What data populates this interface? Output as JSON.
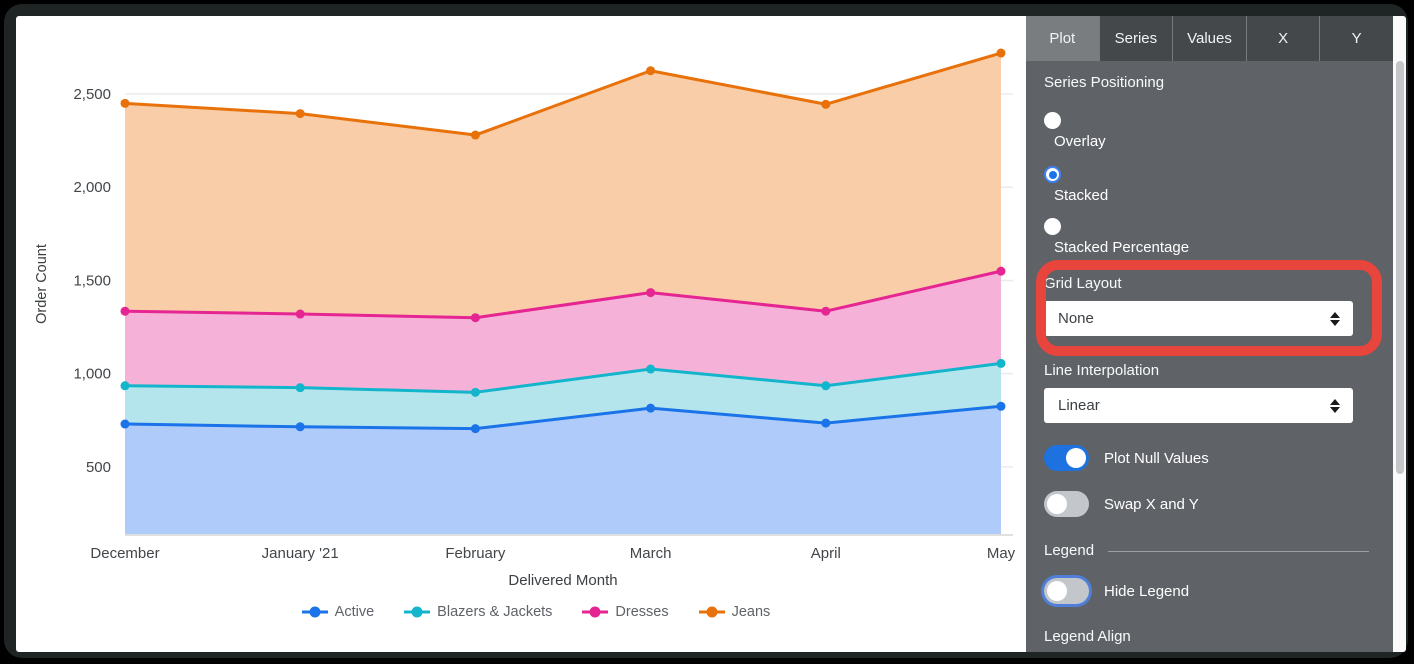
{
  "panel": {
    "tabs": [
      {
        "label": "Plot",
        "active": true
      },
      {
        "label": "Series",
        "active": false
      },
      {
        "label": "Values",
        "active": false
      },
      {
        "label": "X",
        "active": false
      },
      {
        "label": "Y",
        "active": false
      }
    ],
    "series_positioning": {
      "label": "Series Positioning",
      "options": [
        "Overlay",
        "Stacked",
        "Stacked Percentage"
      ],
      "selected": "Stacked"
    },
    "grid_layout": {
      "label": "Grid Layout",
      "value": "None"
    },
    "line_interpolation": {
      "label": "Line Interpolation",
      "value": "Linear"
    },
    "plot_null_values": {
      "label": "Plot Null Values",
      "on": true
    },
    "swap_x_and_y": {
      "label": "Swap X and Y",
      "on": false
    },
    "legend_section": {
      "label": "Legend"
    },
    "hide_legend": {
      "label": "Hide Legend",
      "on": false
    },
    "legend_align": {
      "label": "Legend Align"
    },
    "annotation_color": "#e8453c",
    "accent_color": "#1a73e8"
  },
  "chart_data": {
    "type": "area",
    "stacked": true,
    "title": "",
    "x": [
      "December",
      "January '21",
      "February",
      "March",
      "April",
      "May"
    ],
    "xlabel": "Delivered Month",
    "ylabel": "Order Count",
    "yticks": [
      500,
      1000,
      1500,
      2000,
      2500
    ],
    "ytick_labels": [
      "500",
      "1,000",
      "1,500",
      "2,000",
      "2,500"
    ],
    "ylim": [
      140,
      2822
    ],
    "grid": "horizontal-only",
    "legend_position": "bottom",
    "series": [
      {
        "name": "Active",
        "color": "#1a73e8",
        "fill": "#aecbfa",
        "values": [
          730,
          715,
          705,
          815,
          735,
          825
        ]
      },
      {
        "name": "Blazers & Jackets",
        "color": "#12b5cb",
        "fill": "#b5e5ec",
        "values": [
          205,
          210,
          195,
          210,
          200,
          230
        ]
      },
      {
        "name": "Dresses",
        "color": "#e52592",
        "fill": "#f6b1d8",
        "values": [
          400,
          395,
          400,
          410,
          400,
          495
        ]
      },
      {
        "name": "Jeans",
        "color": "#e8710a",
        "fill": "#f8cda8",
        "values": [
          1115,
          1075,
          980,
          1190,
          1110,
          1170
        ]
      }
    ],
    "stacked_totals": [
      2450,
      2395,
      2280,
      2625,
      2445,
      2720
    ]
  }
}
